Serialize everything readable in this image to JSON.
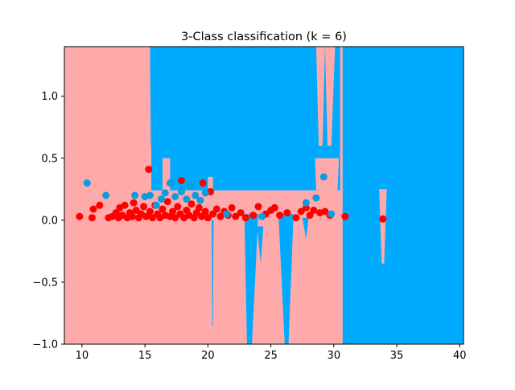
{
  "chart_data": {
    "type": "scatter",
    "title": "3-Class classification (k = 6)",
    "xlabel": "",
    "ylabel": "",
    "xlim": [
      8.6,
      40.3
    ],
    "ylim": [
      -1.0,
      1.4
    ],
    "x_ticks": [
      10,
      15,
      20,
      25,
      30,
      35,
      40
    ],
    "y_ticks": [
      -1.0,
      -0.5,
      0.0,
      0.5,
      1.0
    ],
    "x_tick_labels": [
      "10",
      "15",
      "20",
      "25",
      "30",
      "35",
      "40"
    ],
    "y_tick_labels": [
      "−1.0",
      "−0.5",
      "0.0",
      "0.5",
      "1.0"
    ],
    "grid": false,
    "legend": "none",
    "colors": {
      "region_red": "#ffaaaa",
      "region_blue": "#00aaff",
      "point_red": "#ff0000",
      "point_blue": "#0a9be0"
    },
    "decision_regions": {
      "description_classes": [
        "red",
        "blue"
      ],
      "default_class": "red",
      "blue_polygons": [
        [
          [
            15.5,
            1.4
          ],
          [
            30.5,
            1.4
          ],
          [
            30.5,
            0.24
          ],
          [
            15.5,
            0.24
          ]
        ],
        [
          [
            15.3,
            1.4
          ],
          [
            15.7,
            1.4
          ],
          [
            15.6,
            0.6
          ],
          [
            15.4,
            0.6
          ]
        ],
        [
          [
            30.7,
            1.4
          ],
          [
            40.3,
            1.4
          ],
          [
            40.3,
            -1.0
          ],
          [
            30.7,
            -1.0
          ],
          [
            30.7,
            0.1
          ]
        ],
        [
          [
            22.9,
            0.05
          ],
          [
            24.0,
            0.05
          ],
          [
            23.5,
            -1.0
          ],
          [
            23.1,
            -1.0
          ]
        ],
        [
          [
            25.6,
            0.05
          ],
          [
            26.8,
            0.05
          ],
          [
            26.4,
            -1.0
          ],
          [
            26.1,
            -1.0
          ]
        ],
        [
          [
            20.3,
            0.0
          ],
          [
            20.45,
            0.0
          ],
          [
            20.4,
            -0.85
          ],
          [
            20.35,
            -0.85
          ]
        ],
        [
          [
            23.9,
            -0.05
          ],
          [
            24.4,
            -0.05
          ],
          [
            24.2,
            -0.35
          ]
        ],
        [
          [
            27.5,
            0.02
          ],
          [
            28.0,
            0.02
          ],
          [
            27.8,
            -0.15
          ]
        ]
      ],
      "red_polygons": [
        [
          [
            15.0,
            1.4
          ],
          [
            15.4,
            1.4
          ],
          [
            15.5,
            0.24
          ],
          [
            15.0,
            0.24
          ]
        ],
        [
          [
            14.6,
            1.4
          ],
          [
            14.8,
            1.4
          ],
          [
            14.75,
            0.7
          ],
          [
            14.65,
            0.7
          ]
        ],
        [
          [
            28.6,
            1.4
          ],
          [
            29.3,
            1.4
          ],
          [
            29.1,
            0.6
          ],
          [
            28.8,
            0.6
          ]
        ],
        [
          [
            29.3,
            1.4
          ],
          [
            30.1,
            1.4
          ],
          [
            29.8,
            0.6
          ],
          [
            29.5,
            0.6
          ]
        ],
        [
          [
            28.5,
            0.5
          ],
          [
            30.4,
            0.5
          ],
          [
            30.3,
            0.24
          ],
          [
            28.6,
            0.24
          ]
        ],
        [
          [
            16.4,
            0.5
          ],
          [
            17.0,
            0.5
          ],
          [
            17.0,
            0.24
          ],
          [
            16.4,
            0.24
          ]
        ],
        [
          [
            20.0,
            0.35
          ],
          [
            20.4,
            0.35
          ],
          [
            20.4,
            0.24
          ],
          [
            20.0,
            0.24
          ]
        ],
        [
          [
            33.6,
            0.25
          ],
          [
            34.2,
            0.25
          ],
          [
            34.0,
            -0.35
          ],
          [
            33.8,
            -0.35
          ]
        ]
      ]
    },
    "series": [
      {
        "class": "red",
        "points": [
          [
            9.8,
            0.03
          ],
          [
            10.8,
            0.02
          ],
          [
            10.9,
            0.09
          ],
          [
            11.4,
            0.12
          ],
          [
            12.1,
            0.02
          ],
          [
            12.4,
            0.03
          ],
          [
            12.7,
            0.06
          ],
          [
            12.9,
            0.02
          ],
          [
            13.0,
            0.1
          ],
          [
            13.2,
            0.04
          ],
          [
            13.4,
            0.12
          ],
          [
            13.6,
            0.02
          ],
          [
            13.8,
            0.06
          ],
          [
            14.0,
            0.03
          ],
          [
            14.1,
            0.14
          ],
          [
            14.3,
            0.08
          ],
          [
            14.5,
            0.02
          ],
          [
            14.7,
            0.05
          ],
          [
            14.9,
            0.11
          ],
          [
            15.1,
            0.03
          ],
          [
            15.3,
            0.41
          ],
          [
            15.4,
            0.07
          ],
          [
            15.6,
            0.02
          ],
          [
            15.8,
            0.12
          ],
          [
            16.0,
            0.05
          ],
          [
            16.2,
            0.02
          ],
          [
            16.4,
            0.09
          ],
          [
            16.6,
            0.04
          ],
          [
            16.8,
            0.15
          ],
          [
            17.0,
            0.03
          ],
          [
            17.2,
            0.07
          ],
          [
            17.4,
            0.02
          ],
          [
            17.6,
            0.11
          ],
          [
            17.8,
            0.05
          ],
          [
            17.9,
            0.32
          ],
          [
            18.1,
            0.02
          ],
          [
            18.3,
            0.08
          ],
          [
            18.5,
            0.04
          ],
          [
            18.7,
            0.13
          ],
          [
            18.9,
            0.02
          ],
          [
            19.1,
            0.06
          ],
          [
            19.3,
            0.1
          ],
          [
            19.5,
            0.03
          ],
          [
            19.6,
            0.3
          ],
          [
            19.8,
            0.07
          ],
          [
            20.0,
            0.02
          ],
          [
            20.2,
            0.23
          ],
          [
            20.4,
            0.05
          ],
          [
            20.7,
            0.09
          ],
          [
            21.0,
            0.03
          ],
          [
            21.3,
            0.07
          ],
          [
            21.6,
            0.04
          ],
          [
            21.9,
            0.1
          ],
          [
            22.2,
            0.03
          ],
          [
            22.6,
            0.06
          ],
          [
            23.0,
            0.02
          ],
          [
            23.6,
            0.04
          ],
          [
            24.0,
            0.11
          ],
          [
            24.6,
            0.05
          ],
          [
            25.0,
            0.08
          ],
          [
            25.3,
            0.1
          ],
          [
            25.7,
            0.04
          ],
          [
            26.3,
            0.06
          ],
          [
            27.0,
            0.02
          ],
          [
            27.4,
            0.07
          ],
          [
            27.8,
            0.1
          ],
          [
            28.1,
            0.04
          ],
          [
            28.4,
            0.08
          ],
          [
            28.9,
            0.06
          ],
          [
            29.3,
            0.07
          ],
          [
            29.7,
            0.04
          ],
          [
            30.9,
            0.03
          ],
          [
            33.9,
            0.01
          ]
        ]
      },
      {
        "class": "blue",
        "points": [
          [
            10.4,
            0.3
          ],
          [
            11.9,
            0.2
          ],
          [
            14.2,
            0.2
          ],
          [
            15.0,
            0.19
          ],
          [
            15.4,
            0.2
          ],
          [
            15.9,
            0.12
          ],
          [
            16.3,
            0.17
          ],
          [
            16.6,
            0.22
          ],
          [
            17.0,
            0.3
          ],
          [
            17.4,
            0.19
          ],
          [
            17.9,
            0.23
          ],
          [
            18.3,
            0.17
          ],
          [
            18.6,
            0.28
          ],
          [
            19.0,
            0.2
          ],
          [
            19.4,
            0.16
          ],
          [
            19.8,
            0.22
          ],
          [
            21.5,
            0.05
          ],
          [
            24.3,
            0.03
          ],
          [
            27.8,
            0.14
          ],
          [
            28.6,
            0.18
          ],
          [
            29.2,
            0.35
          ],
          [
            29.8,
            0.05
          ]
        ]
      }
    ]
  }
}
